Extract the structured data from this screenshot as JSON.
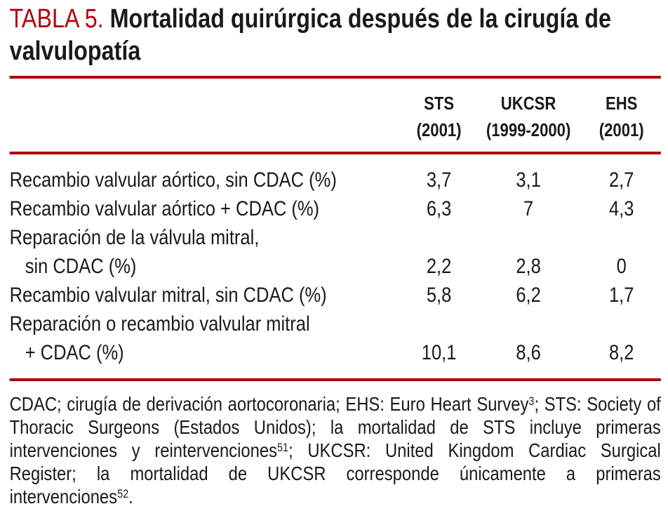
{
  "title": {
    "tag": "TABLA 5.",
    "text": "Mortalidad quirúrgica después de la cirugía de valvulopatía"
  },
  "colors": {
    "title_red": "#b30012",
    "rule_red": "#a80212",
    "text_black": "#1a1a1a"
  },
  "table": {
    "columns": [
      {
        "name": "STS",
        "period": "(2001)"
      },
      {
        "name": "UKCSR",
        "period": "(1999-2000)"
      },
      {
        "name": "EHS",
        "period": "(2001)"
      }
    ],
    "rows": [
      {
        "label": "Recambio valvular aórtico, sin CDAC (%)",
        "values": [
          "3,7",
          "3,1",
          "2,7"
        ]
      },
      {
        "label": "Recambio valvular aórtico + CDAC (%)",
        "values": [
          "6,3",
          "7",
          "4,3"
        ]
      },
      {
        "label": "Reparación de la válvula mitral,",
        "label2": "sin CDAC (%)",
        "values": [
          "2,2",
          "2,8",
          "0"
        ]
      },
      {
        "label": "Recambio valvular mitral, sin CDAC (%)",
        "values": [
          "5,8",
          "6,2",
          "1,7"
        ]
      },
      {
        "label": "Reparación o recambio valvular mitral",
        "label2": "+ CDAC (%)",
        "values": [
          "10,1",
          "8,6",
          "8,2"
        ]
      }
    ]
  },
  "footnote": {
    "parts": [
      "CDAC; cirugía de derivación aortocoronaria; EHS: Euro Heart Survey",
      "; STS: Society of Thoracic Surgeons (Estados Unidos); la mortalidad de STS incluye primeras intervenciones y reintervenciones",
      "; UKCSR: United Kingdom Cardiac Surgical Register; la mortalidad de UKCSR corresponde únicamente a primeras intervenciones",
      "."
    ],
    "sups": [
      "3",
      "51",
      "52"
    ]
  }
}
